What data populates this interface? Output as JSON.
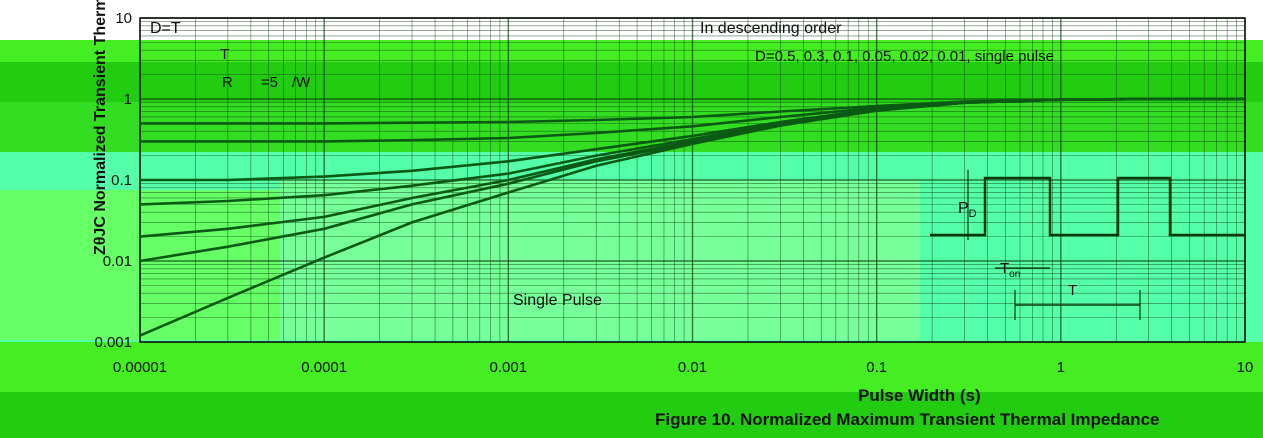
{
  "colors": {
    "bg_green": "#33dd22",
    "bg_light": "#66ff33",
    "bg_cyan": "#55ffaa",
    "curve": "#0a5a14",
    "grid": "#0d3f10",
    "text": "#111111"
  },
  "chart_data": {
    "type": "line",
    "title": "",
    "xlabel": "Pulse Width (s)",
    "ylabel": "ZθJC Normalized Transient Thermal Resistance",
    "xscale": "log",
    "yscale": "log",
    "xlim": [
      1e-05,
      10
    ],
    "ylim": [
      0.001,
      10
    ],
    "x_ticks": [
      "0.00001",
      "0.0001",
      "0.001",
      "0.01",
      "0.1",
      "1",
      "10"
    ],
    "y_ticks": [
      "10",
      "1",
      "0.1",
      "0.01",
      "0.001"
    ],
    "grid": true,
    "annotations": {
      "formula_1": "D=T",
      "formula_2": "T",
      "formula_3": "R",
      "formula_4": "=5",
      "formula_5": "/W",
      "legend_1": "In descending order",
      "legend_2": "D=0.5, 0.3, 0.1, 0.05, 0.02, 0.01, single pulse",
      "single_pulse": "Single Pulse",
      "pd": "P",
      "pd_sub": "D",
      "ton": "T",
      "ton_sub": "on",
      "T": "T"
    },
    "series": [
      {
        "name": "D=0.5",
        "x": [
          1e-05,
          3e-05,
          0.0001,
          0.0003,
          0.001,
          0.003,
          0.01,
          0.03,
          0.1,
          0.3,
          1,
          3,
          10
        ],
        "y": [
          0.5,
          0.5,
          0.5,
          0.51,
          0.52,
          0.55,
          0.6,
          0.7,
          0.82,
          0.93,
          0.98,
          1.0,
          1.0
        ]
      },
      {
        "name": "D=0.3",
        "x": [
          1e-05,
          3e-05,
          0.0001,
          0.0003,
          0.001,
          0.003,
          0.01,
          0.03,
          0.1,
          0.3,
          1,
          3,
          10
        ],
        "y": [
          0.3,
          0.3,
          0.3,
          0.31,
          0.33,
          0.38,
          0.46,
          0.6,
          0.78,
          0.92,
          0.98,
          1.0,
          1.0
        ]
      },
      {
        "name": "D=0.1",
        "x": [
          1e-05,
          3e-05,
          0.0001,
          0.0003,
          0.001,
          0.003,
          0.01,
          0.03,
          0.1,
          0.3,
          1,
          3,
          10
        ],
        "y": [
          0.1,
          0.1,
          0.11,
          0.13,
          0.17,
          0.24,
          0.35,
          0.52,
          0.75,
          0.91,
          0.98,
          1.0,
          1.0
        ]
      },
      {
        "name": "D=0.05",
        "x": [
          1e-05,
          3e-05,
          0.0001,
          0.0003,
          0.001,
          0.003,
          0.01,
          0.03,
          0.1,
          0.3,
          1,
          3,
          10
        ],
        "y": [
          0.05,
          0.055,
          0.065,
          0.085,
          0.12,
          0.2,
          0.32,
          0.5,
          0.74,
          0.9,
          0.98,
          1.0,
          1.0
        ]
      },
      {
        "name": "D=0.02",
        "x": [
          1e-05,
          3e-05,
          0.0001,
          0.0003,
          0.001,
          0.003,
          0.01,
          0.03,
          0.1,
          0.3,
          1,
          3,
          10
        ],
        "y": [
          0.02,
          0.025,
          0.035,
          0.06,
          0.1,
          0.18,
          0.3,
          0.49,
          0.73,
          0.9,
          0.98,
          1.0,
          1.0
        ]
      },
      {
        "name": "D=0.01",
        "x": [
          1e-05,
          3e-05,
          0.0001,
          0.0003,
          0.001,
          0.003,
          0.01,
          0.03,
          0.1,
          0.3,
          1,
          3,
          10
        ],
        "y": [
          0.01,
          0.015,
          0.025,
          0.05,
          0.09,
          0.17,
          0.29,
          0.48,
          0.72,
          0.9,
          0.98,
          1.0,
          1.0
        ]
      },
      {
        "name": "single pulse",
        "x": [
          1e-05,
          3e-05,
          0.0001,
          0.0003,
          0.001,
          0.003,
          0.01,
          0.03,
          0.1,
          0.3,
          1,
          3,
          10
        ],
        "y": [
          0.0012,
          0.0035,
          0.011,
          0.03,
          0.07,
          0.15,
          0.28,
          0.47,
          0.72,
          0.9,
          0.98,
          1.0,
          1.0
        ]
      }
    ]
  },
  "caption": "Figure 10. Normalized Maximum Transient Thermal Impedance"
}
